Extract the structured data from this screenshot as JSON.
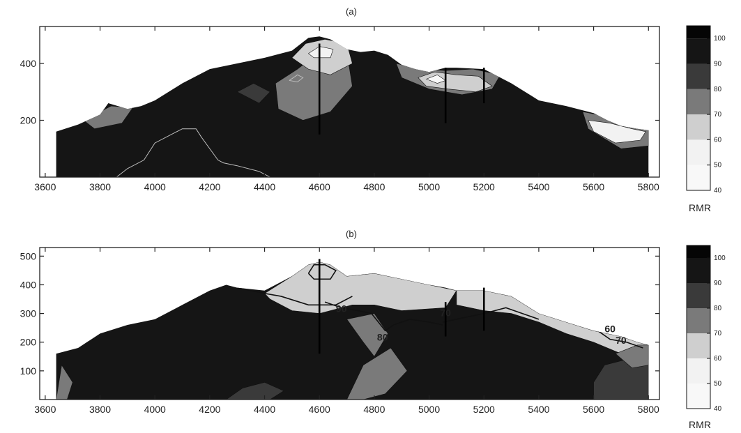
{
  "chart_data": [
    {
      "type": "heatmap",
      "panel_label": "(a)",
      "x_ticks": [
        3600,
        3800,
        4000,
        4200,
        4400,
        4600,
        4800,
        5000,
        5200,
        5400,
        5600,
        5800
      ],
      "y_ticks": [
        200,
        400
      ],
      "xlim": [
        3580,
        5840
      ],
      "ylim": [
        0,
        530
      ],
      "colorbar": {
        "label": "RMR",
        "ticks": [
          100,
          90,
          80,
          70,
          60,
          50,
          40
        ],
        "range": [
          40,
          105
        ],
        "bands": [
          {
            "from": 40,
            "to": 50,
            "color": "#f8f8f8"
          },
          {
            "from": 50,
            "to": 60,
            "color": "#f2f2f2"
          },
          {
            "from": 60,
            "to": 70,
            "color": "#cfcfcf"
          },
          {
            "from": 70,
            "to": 80,
            "color": "#7a7a7a"
          },
          {
            "from": 80,
            "to": 90,
            "color": "#3a3a3a"
          },
          {
            "from": 90,
            "to": 100,
            "color": "#151515"
          },
          {
            "from": 100,
            "to": 105,
            "color": "#050505"
          }
        ]
      },
      "surface": {
        "x": [
          3640,
          3720,
          3800,
          3830,
          3900,
          3950,
          4000,
          4100,
          4200,
          4300,
          4400,
          4500,
          4560,
          4600,
          4640,
          4700,
          4750,
          4800,
          4850,
          4900,
          4950,
          5000,
          5060,
          5100,
          5200,
          5300,
          5400,
          5500,
          5600,
          5650,
          5700,
          5760,
          5800
        ],
        "y": [
          160,
          185,
          220,
          260,
          240,
          250,
          270,
          330,
          380,
          400,
          420,
          445,
          490,
          495,
          485,
          450,
          440,
          445,
          430,
          395,
          380,
          370,
          385,
          385,
          380,
          330,
          270,
          250,
          225,
          200,
          180,
          170,
          165
        ]
      },
      "regions": [
        {
          "value": 78,
          "x": [
            4440,
            4520,
            4600,
            4700,
            4720,
            4640,
            4540,
            4450
          ],
          "y": [
            330,
            380,
            440,
            440,
            320,
            230,
            200,
            240
          ]
        },
        {
          "value": 62,
          "x": [
            4500,
            4550,
            4620,
            4700,
            4720,
            4640,
            4560
          ],
          "y": [
            420,
            470,
            485,
            470,
            400,
            360,
            380
          ]
        },
        {
          "value": 52,
          "x": [
            4560,
            4600,
            4650,
            4640,
            4580
          ],
          "y": [
            435,
            460,
            450,
            420,
            420
          ]
        },
        {
          "value": 78,
          "x": [
            4880,
            4960,
            5060,
            5160,
            5260,
            5230,
            5120,
            5000,
            4900
          ],
          "y": [
            400,
            380,
            375,
            380,
            360,
            310,
            290,
            310,
            350
          ]
        },
        {
          "value": 60,
          "x": [
            4960,
            5020,
            5100,
            5180,
            5230,
            5170,
            5070,
            4990
          ],
          "y": [
            350,
            370,
            360,
            355,
            320,
            300,
            310,
            320
          ]
        },
        {
          "value": 45,
          "x": [
            4990,
            5030,
            5060,
            5030
          ],
          "y": [
            345,
            360,
            340,
            330
          ]
        },
        {
          "value": 75,
          "x": [
            5560,
            5640,
            5720,
            5800,
            5800,
            5700,
            5580
          ],
          "y": [
            230,
            215,
            190,
            170,
            110,
            100,
            170
          ]
        },
        {
          "value": 58,
          "x": [
            5580,
            5660,
            5740,
            5790,
            5770,
            5680,
            5600
          ],
          "y": [
            200,
            190,
            170,
            160,
            130,
            120,
            160
          ]
        },
        {
          "value": 72,
          "x": [
            3740,
            3840,
            3920,
            3880,
            3780
          ],
          "y": [
            200,
            250,
            245,
            190,
            170
          ]
        },
        {
          "value": 80,
          "x": [
            4300,
            4360,
            4420,
            4380
          ],
          "y": [
            300,
            330,
            300,
            260
          ]
        }
      ],
      "contour_lines": [
        {
          "x": [
            3860,
            3900,
            3960,
            4000,
            4060,
            4100,
            4150,
            4170
          ],
          "y": [
            0,
            30,
            60,
            120,
            150,
            170,
            170,
            140
          ]
        },
        {
          "x": [
            4170,
            4200,
            4230,
            4250,
            4300,
            4380,
            4420
          ],
          "y": [
            140,
            100,
            60,
            50,
            40,
            20,
            0
          ]
        },
        {
          "x": [
            4490,
            4520,
            4540,
            4520,
            4490
          ],
          "y": [
            340,
            360,
            350,
            335,
            340
          ]
        }
      ],
      "boreholes": [
        {
          "x": 4600,
          "top": 470,
          "bottom": 150
        },
        {
          "x": 5060,
          "top": 385,
          "bottom": 190
        },
        {
          "x": 5200,
          "top": 385,
          "bottom": 260
        }
      ]
    },
    {
      "type": "heatmap",
      "panel_label": "(b)",
      "x_ticks": [
        3600,
        3800,
        4000,
        4200,
        4400,
        4600,
        4800,
        5000,
        5200,
        5400,
        5600,
        5800
      ],
      "y_ticks": [
        100,
        200,
        300,
        400,
        500
      ],
      "xlim": [
        3580,
        5840
      ],
      "ylim": [
        0,
        530
      ],
      "colorbar": {
        "label": "RMR",
        "ticks": [
          100,
          90,
          80,
          70,
          60,
          50,
          40
        ],
        "range": [
          40,
          105
        ],
        "bands": [
          {
            "from": 40,
            "to": 50,
            "color": "#f8f8f8"
          },
          {
            "from": 50,
            "to": 60,
            "color": "#f2f2f2"
          },
          {
            "from": 60,
            "to": 70,
            "color": "#cfcfcf"
          },
          {
            "from": 70,
            "to": 80,
            "color": "#7a7a7a"
          },
          {
            "from": 80,
            "to": 90,
            "color": "#3a3a3a"
          },
          {
            "from": 90,
            "to": 100,
            "color": "#151515"
          },
          {
            "from": 100,
            "to": 105,
            "color": "#050505"
          }
        ]
      },
      "surface": {
        "x": [
          3640,
          3720,
          3800,
          3900,
          4000,
          4100,
          4200,
          4260,
          4300,
          4400,
          4500,
          4560,
          4600,
          4640,
          4700,
          4800,
          4900,
          5000,
          5060,
          5100,
          5200,
          5300,
          5400,
          5500,
          5600,
          5700,
          5760,
          5800
        ],
        "y": [
          160,
          180,
          230,
          260,
          280,
          330,
          380,
          400,
          390,
          380,
          430,
          470,
          480,
          470,
          430,
          440,
          420,
          400,
          390,
          380,
          380,
          360,
          300,
          270,
          240,
          220,
          200,
          190
        ]
      },
      "regions": [
        {
          "value": 68,
          "x": [
            4400,
            4500,
            4560,
            4600,
            4640,
            4700,
            4800,
            4900,
            5000,
            5100,
            5060,
            4900,
            4800,
            4720,
            4600,
            4500,
            4420
          ],
          "y": [
            370,
            430,
            470,
            480,
            470,
            430,
            440,
            420,
            400,
            380,
            320,
            310,
            330,
            330,
            300,
            310,
            350
          ]
        },
        {
          "value": 66,
          "x": [
            5100,
            5200,
            5300,
            5400,
            5500,
            5600,
            5700,
            5760,
            5800,
            5800,
            5700,
            5600,
            5500,
            5400,
            5300,
            5200,
            5100
          ],
          "y": [
            380,
            380,
            360,
            300,
            270,
            240,
            220,
            200,
            190,
            140,
            160,
            200,
            230,
            270,
            300,
            310,
            330
          ]
        },
        {
          "value": 78,
          "x": [
            4700,
            4800,
            4850,
            4800,
            4760
          ],
          "y": [
            280,
            300,
            230,
            150,
            200
          ]
        },
        {
          "value": 76,
          "x": [
            4700,
            4760,
            4860,
            4920,
            4840,
            4760
          ],
          "y": [
            0,
            120,
            180,
            100,
            20,
            0
          ]
        },
        {
          "value": 80,
          "x": [
            4260,
            4320,
            4400,
            4470,
            4420,
            4300
          ],
          "y": [
            0,
            40,
            60,
            30,
            0,
            0
          ]
        },
        {
          "value": 80,
          "x": [
            5600,
            5640,
            5720,
            5800,
            5800,
            5700,
            5600
          ],
          "y": [
            60,
            120,
            140,
            120,
            0,
            0,
            0
          ]
        },
        {
          "value": 76,
          "x": [
            3640,
            3660,
            3700,
            3680
          ],
          "y": [
            0,
            120,
            60,
            0
          ]
        },
        {
          "value": 74,
          "x": [
            5680,
            5760,
            5800,
            5800,
            5740
          ],
          "y": [
            160,
            190,
            190,
            120,
            110
          ]
        }
      ],
      "contour_lines": [
        {
          "x": [
            4300,
            4400,
            4460,
            4560,
            4600,
            4660,
            4720
          ],
          "y": [
            390,
            370,
            360,
            330,
            330,
            330,
            360
          ]
        },
        {
          "x": [
            4560,
            4580,
            4620,
            4660,
            4640,
            4580,
            4560
          ],
          "y": [
            440,
            470,
            470,
            450,
            420,
            420,
            440
          ]
        },
        {
          "x": [
            4620,
            4680,
            4740,
            4790,
            4840,
            4870,
            4930,
            5000,
            5050
          ],
          "y": [
            340,
            320,
            310,
            300,
            240,
            260,
            280,
            270,
            260
          ]
        },
        {
          "x": [
            5050,
            5150,
            5200,
            5280,
            5340,
            5400
          ],
          "y": [
            270,
            290,
            300,
            320,
            300,
            280
          ]
        },
        {
          "x": [
            5600,
            5660,
            5720,
            5780
          ],
          "y": [
            250,
            210,
            200,
            180
          ]
        }
      ],
      "contour_labels": [
        {
          "text": "90",
          "x": 4680,
          "y": 305
        },
        {
          "text": "70",
          "x": 5060,
          "y": 290
        },
        {
          "text": "60",
          "x": 5660,
          "y": 235
        },
        {
          "text": "70",
          "x": 5700,
          "y": 195
        },
        {
          "text": "80",
          "x": 4830,
          "y": 205
        }
      ],
      "boreholes": [
        {
          "x": 4600,
          "top": 490,
          "bottom": 160
        },
        {
          "x": 5060,
          "top": 340,
          "bottom": 220
        },
        {
          "x": 5200,
          "top": 390,
          "bottom": 240
        }
      ]
    }
  ]
}
